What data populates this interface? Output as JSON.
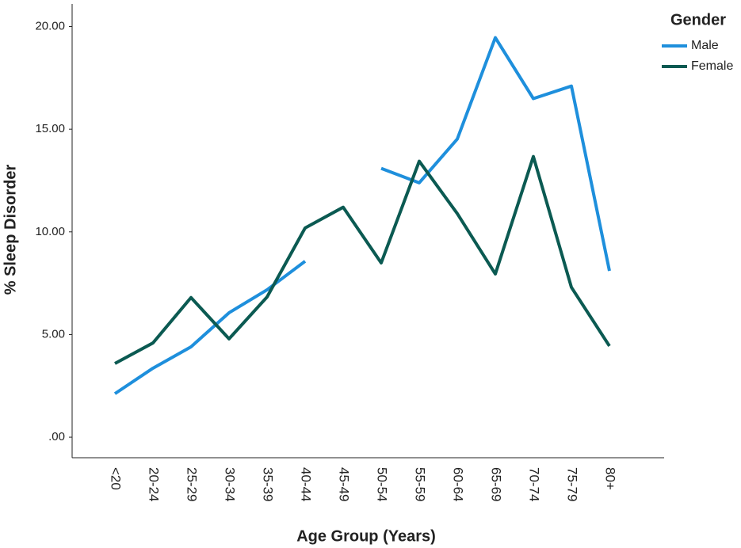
{
  "chart_data": {
    "type": "line",
    "x_label": "Age Group (Years)",
    "y_label": "% Sleep Disorder",
    "categories": [
      "<20",
      "20-24",
      "25-29",
      "30-34",
      "35-39",
      "40-44",
      "45-49",
      "50-54",
      "55-59",
      "60-64",
      "65-69",
      "70-74",
      "75-79",
      "80+"
    ],
    "series": [
      {
        "name": "Male",
        "color": "#1e8fdc",
        "values": [
          2.12,
          3.36,
          4.4,
          6.06,
          7.18,
          8.57,
          null,
          13.09,
          12.39,
          14.52,
          19.46,
          16.49,
          17.1,
          8.1
        ]
      },
      {
        "name": "Female",
        "color": "#0b5a52",
        "values": [
          3.59,
          4.59,
          6.8,
          4.79,
          6.83,
          10.19,
          11.2,
          8.49,
          13.44,
          10.89,
          7.95,
          13.67,
          7.3,
          4.44
        ]
      }
    ],
    "legend_title": "Gender",
    "legend": "top-right",
    "ylim": [
      -1,
      21.1
    ],
    "yticks": [
      {
        "value": 0,
        "label": ".00"
      },
      {
        "value": 5,
        "label": "5.00"
      },
      {
        "value": 10,
        "label": "10.00"
      },
      {
        "value": 15,
        "label": "15.00"
      },
      {
        "value": 20,
        "label": "20.00"
      }
    ],
    "grid": false
  }
}
